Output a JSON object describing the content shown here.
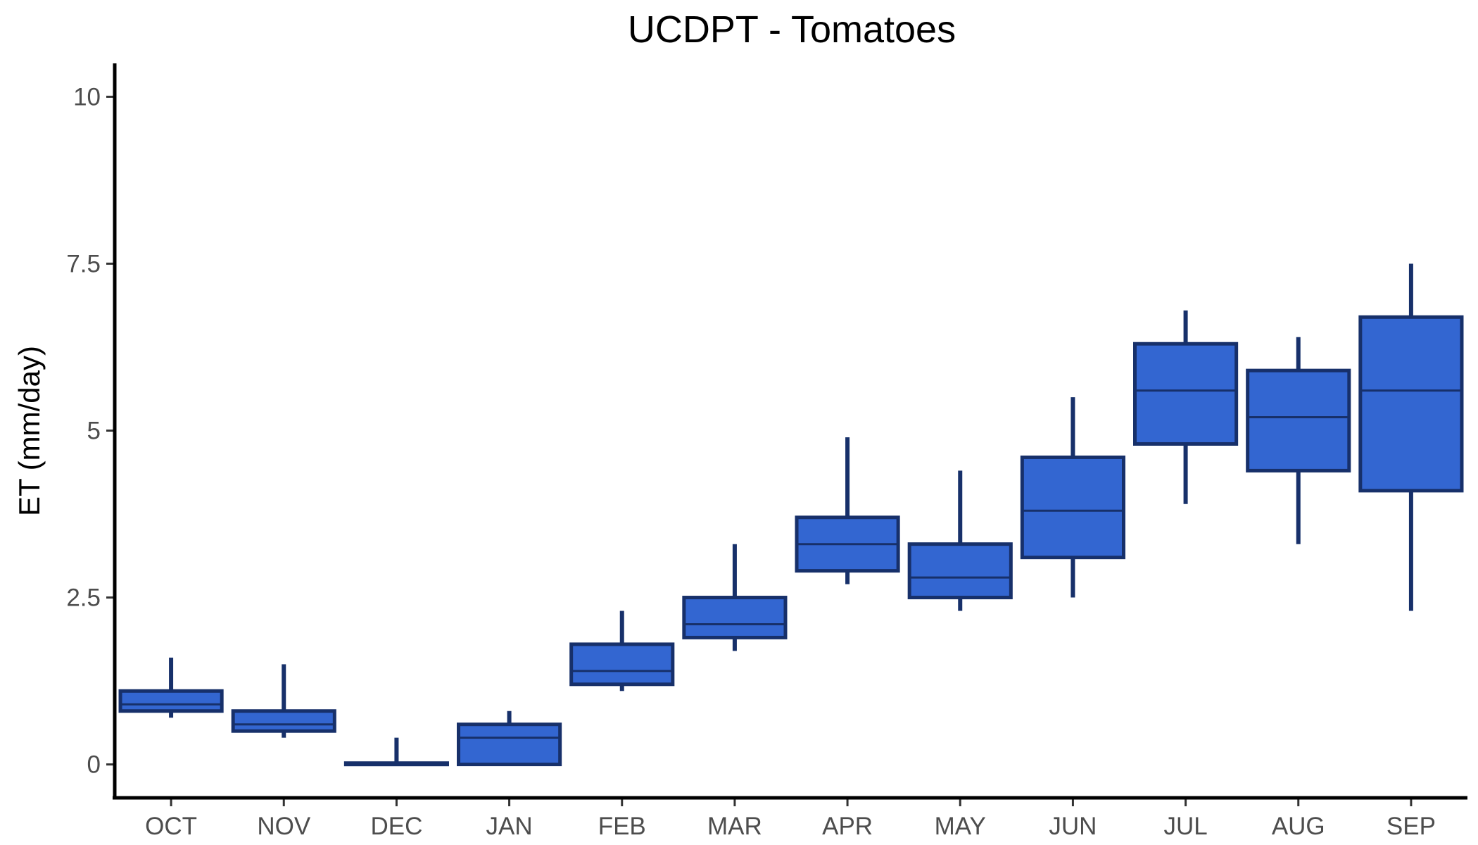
{
  "chart_data": {
    "type": "box",
    "title": "UCDPT - Tomatoes",
    "xlabel": "",
    "ylabel": "ET (mm/day)",
    "ylim": [
      -0.5,
      10.5
    ],
    "yticks": [
      0,
      2.5,
      5,
      7.5,
      10
    ],
    "ytick_labels": [
      "0",
      "2.5",
      "5",
      "7.5",
      "10"
    ],
    "grid": false,
    "legend": "none",
    "colors": {
      "box_fill": "#3366d1",
      "box_stroke": "#17306a",
      "axis": "#000000"
    },
    "categories": [
      "OCT",
      "NOV",
      "DEC",
      "JAN",
      "FEB",
      "MAR",
      "APR",
      "MAY",
      "JUN",
      "JUL",
      "AUG",
      "SEP"
    ],
    "boxes": [
      {
        "category": "OCT",
        "min": 0.7,
        "q1": 0.8,
        "median": 0.9,
        "q3": 1.1,
        "max": 1.6
      },
      {
        "category": "NOV",
        "min": 0.4,
        "q1": 0.5,
        "median": 0.6,
        "q3": 0.8,
        "max": 1.5
      },
      {
        "category": "DEC",
        "min": 0.0,
        "q1": 0.0,
        "median": 0.0,
        "q3": 0.02,
        "max": 0.4
      },
      {
        "category": "JAN",
        "min": 0.0,
        "q1": 0.0,
        "median": 0.4,
        "q3": 0.6,
        "max": 0.8
      },
      {
        "category": "FEB",
        "min": 1.1,
        "q1": 1.2,
        "median": 1.4,
        "q3": 1.8,
        "max": 2.3
      },
      {
        "category": "MAR",
        "min": 1.7,
        "q1": 1.9,
        "median": 2.1,
        "q3": 2.5,
        "max": 3.3
      },
      {
        "category": "APR",
        "min": 2.7,
        "q1": 2.9,
        "median": 3.3,
        "q3": 3.7,
        "max": 4.9
      },
      {
        "category": "MAY",
        "min": 2.3,
        "q1": 2.5,
        "median": 2.8,
        "q3": 3.3,
        "max": 4.4
      },
      {
        "category": "JUN",
        "min": 2.5,
        "q1": 3.1,
        "median": 3.8,
        "q3": 4.6,
        "max": 5.5
      },
      {
        "category": "JUL",
        "min": 3.9,
        "q1": 4.8,
        "median": 5.6,
        "q3": 6.3,
        "max": 6.8
      },
      {
        "category": "AUG",
        "min": 3.3,
        "q1": 4.4,
        "median": 5.2,
        "q3": 5.9,
        "max": 6.4
      },
      {
        "category": "SEP",
        "min": 2.3,
        "q1": 4.1,
        "median": 5.6,
        "q3": 6.7,
        "max": 7.5
      }
    ]
  }
}
